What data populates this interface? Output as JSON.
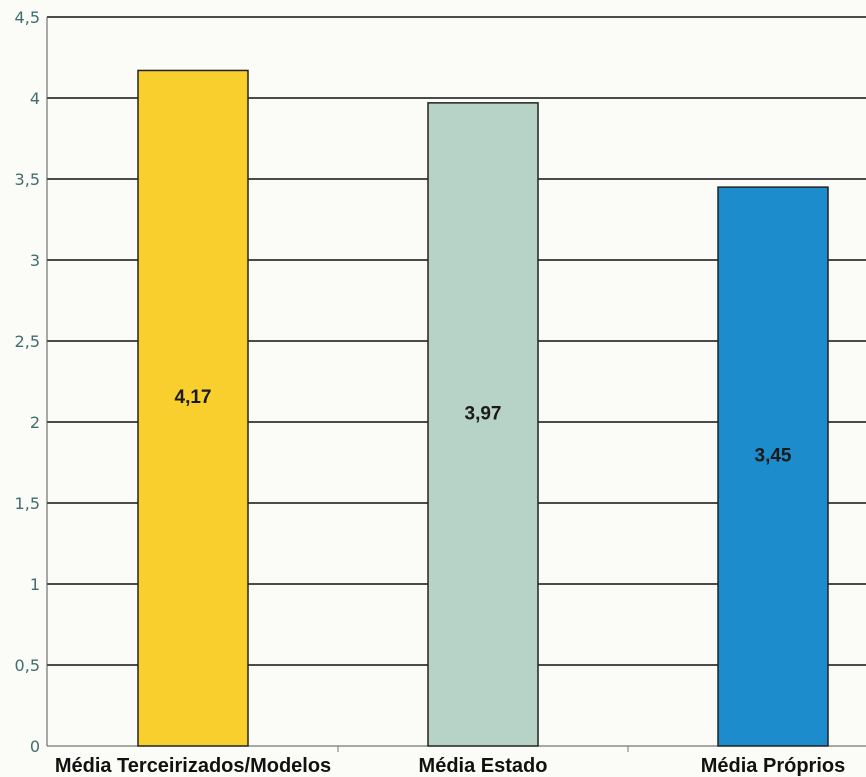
{
  "chart_data": {
    "type": "bar",
    "categories": [
      "Média Terceirizados/Modelos",
      "Média Estado",
      "Média Próprios"
    ],
    "values": [
      4.17,
      3.97,
      3.45
    ],
    "data_labels": [
      "4,17",
      "3,97",
      "3,45"
    ],
    "y_ticks": [
      0,
      0.5,
      1,
      1.5,
      2,
      2.5,
      3,
      3.5,
      4,
      4.5
    ],
    "y_tick_labels": [
      "0",
      "0,5",
      "1",
      "1,5",
      "2",
      "2,5",
      "3",
      "3,5",
      "4",
      "4,5"
    ],
    "ylim": [
      0,
      4.5
    ],
    "grid": true,
    "legend": "none",
    "title": "",
    "xlabel": "",
    "ylabel": "",
    "colors": {
      "bars": [
        "#f8cf2c",
        "#b7d3c7",
        "#1d8ccc"
      ],
      "gridline": "#111111",
      "bar_outline": "#222222",
      "tick_label": "#3f6e6e"
    }
  }
}
